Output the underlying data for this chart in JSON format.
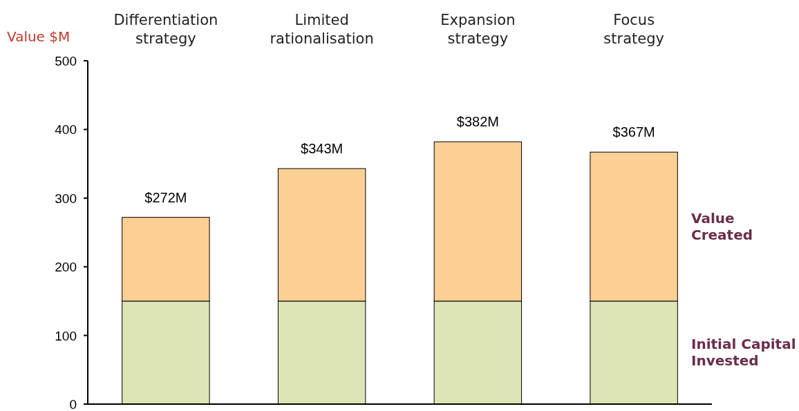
{
  "chart_data": {
    "type": "bar",
    "stacked": true,
    "ylabel": "Value $M",
    "categories": [
      "Differentiation strategy",
      "Limited rationalisation",
      "Expansion strategy",
      "Focus strategy"
    ],
    "series": [
      {
        "name": "Initial Capital Invested",
        "color": "#dde5b6",
        "values": [
          150,
          150,
          150,
          150
        ]
      },
      {
        "name": "Value Created",
        "color": "#fccf94",
        "values": [
          122,
          193,
          232,
          217
        ]
      }
    ],
    "totals": [
      "$272M",
      "$343M",
      "$382M",
      "$367M"
    ],
    "ylim": [
      0,
      500
    ],
    "yticks": [
      0,
      100,
      200,
      300,
      400,
      500
    ],
    "grid": false
  }
}
